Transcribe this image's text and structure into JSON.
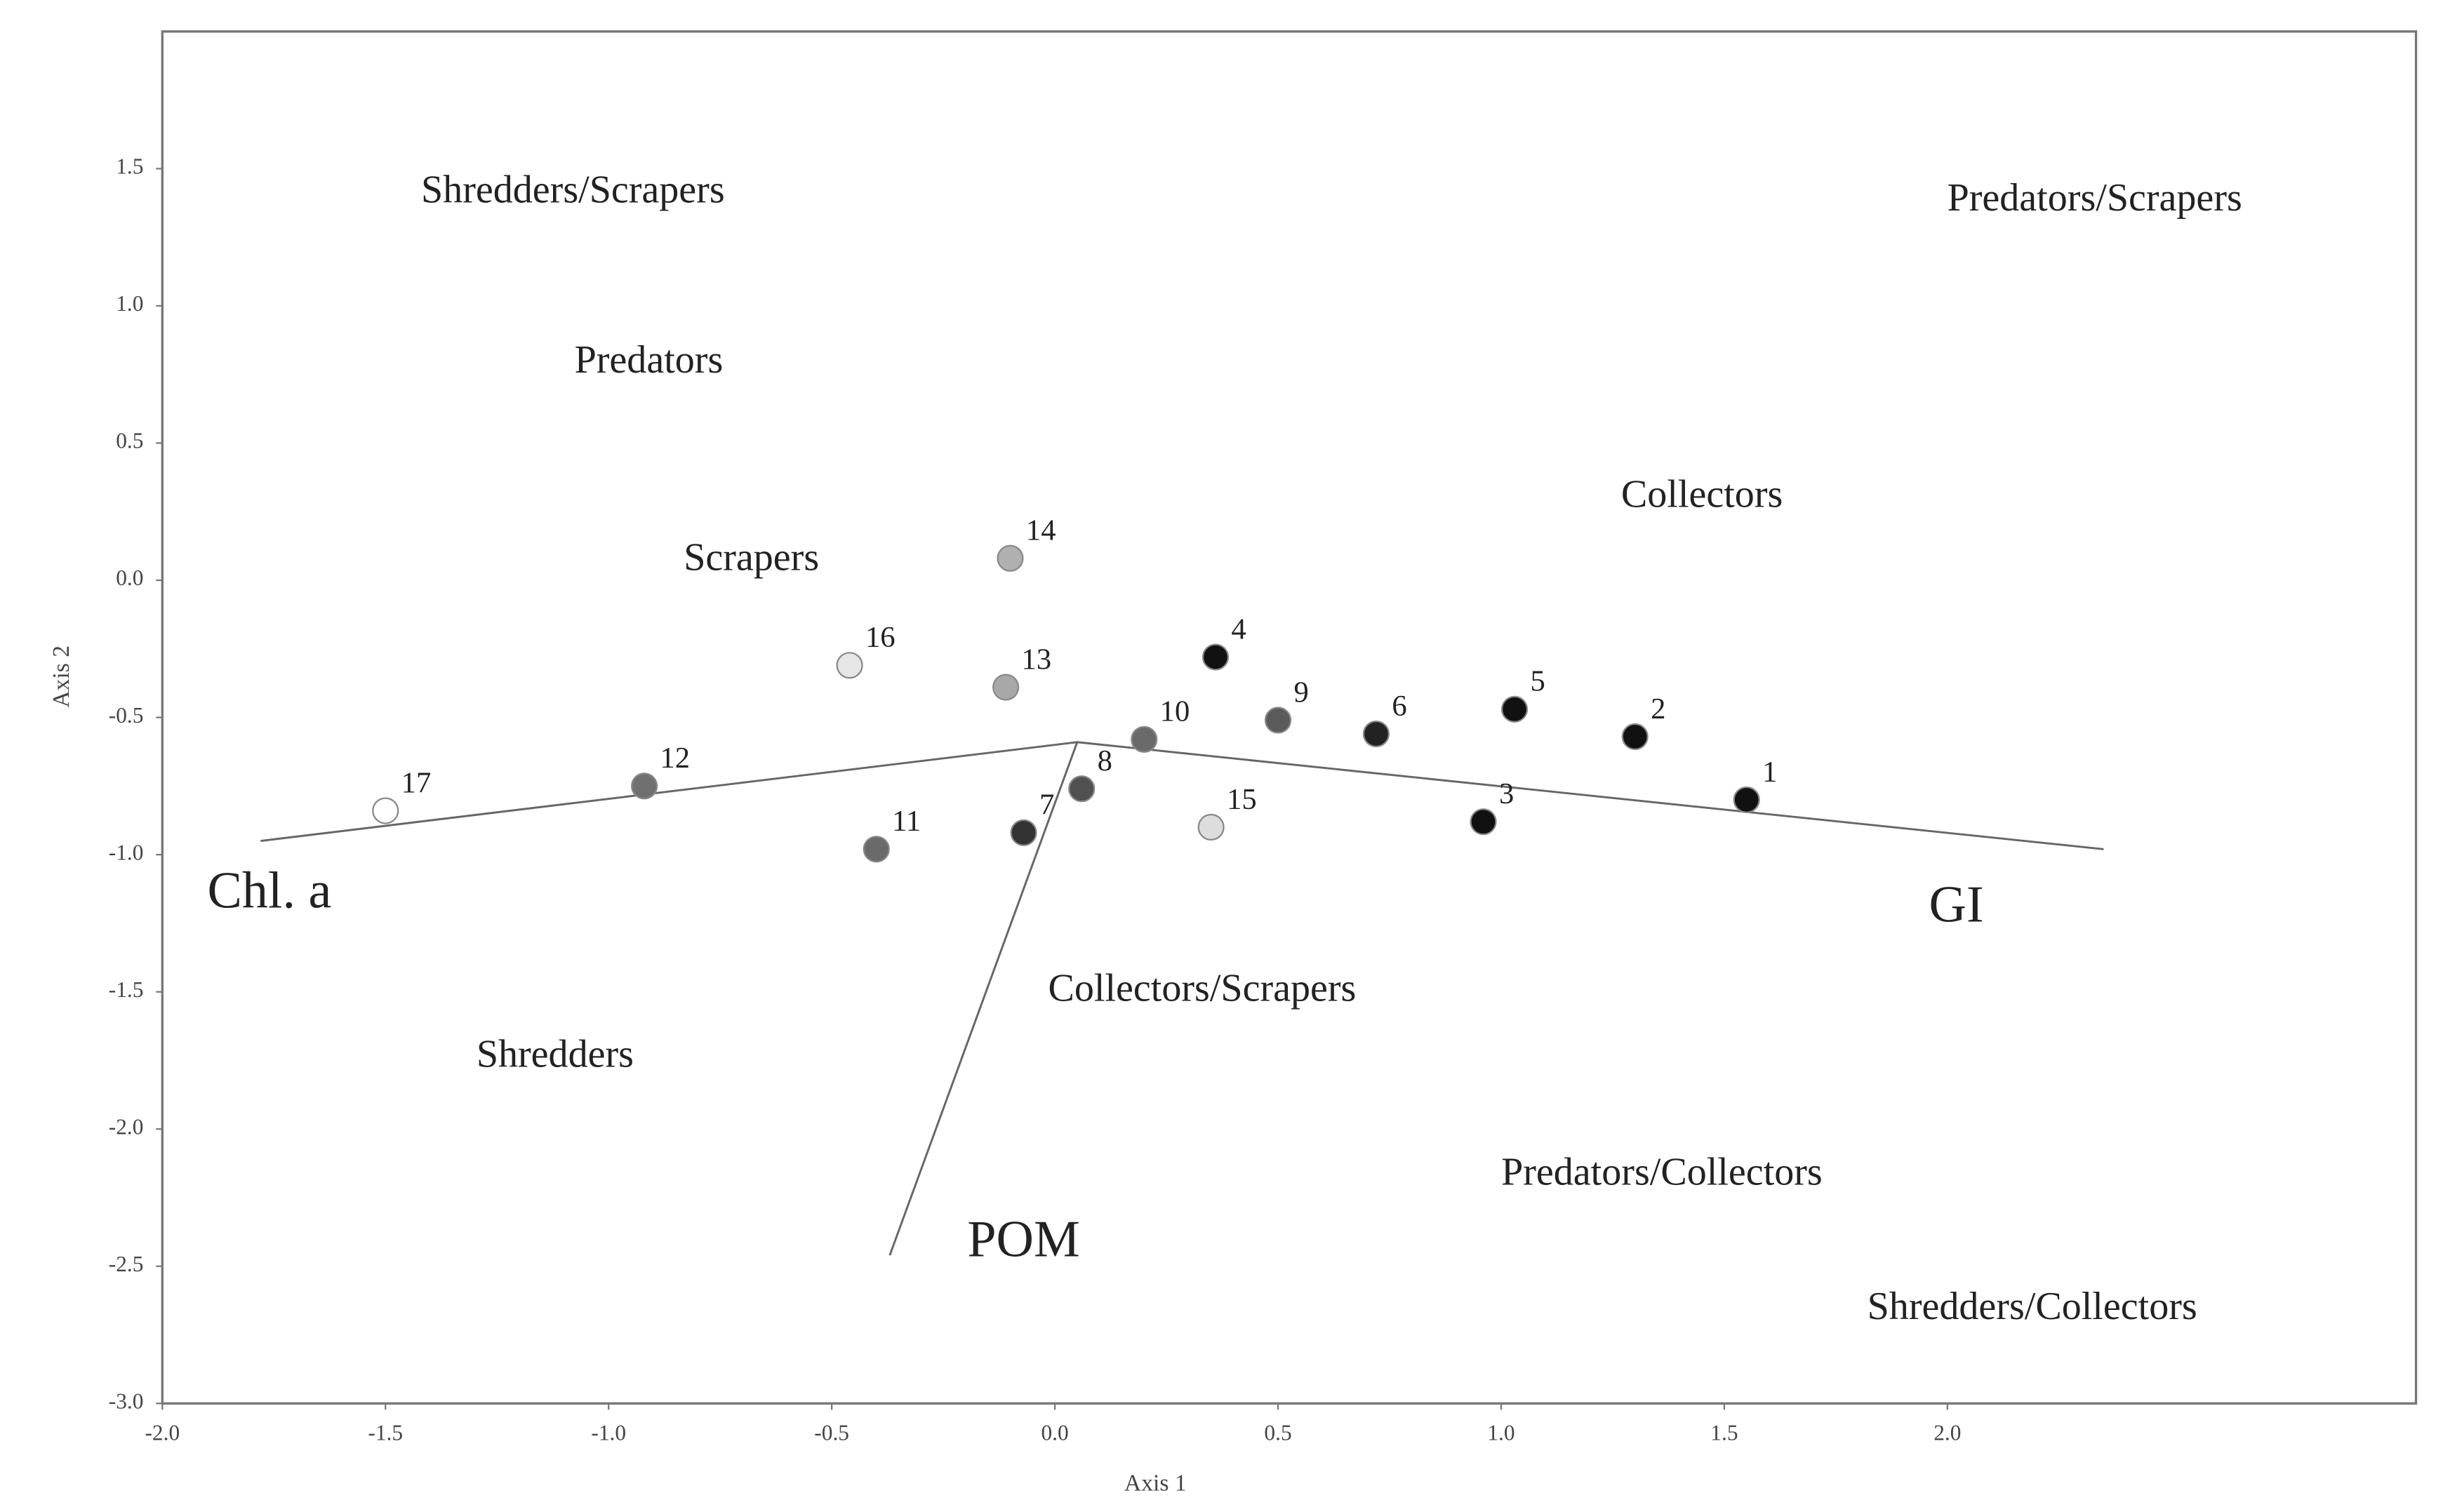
{
  "chart_data": {
    "type": "scatter",
    "x_label": "Axis 1",
    "y_label": "Axis 2",
    "xlim": [
      -2.0,
      3.05
    ],
    "ylim": [
      -3.0,
      2.0
    ],
    "xticks": [
      {
        "value": -2.0,
        "label": "-2.0"
      },
      {
        "value": -1.5,
        "label": "-1.5"
      },
      {
        "value": -1.0,
        "label": "-1.0"
      },
      {
        "value": -0.5,
        "label": "-0.5"
      },
      {
        "value": 0,
        "label": "0.0"
      },
      {
        "value": 0.5,
        "label": "0.5"
      },
      {
        "value": 1.0,
        "label": "1.0"
      },
      {
        "value": 1.5,
        "label": "1.5"
      },
      {
        "value": 2.0,
        "label": "2.0"
      }
    ],
    "yticks": [
      {
        "value": 1.5,
        "label": "1.5"
      },
      {
        "value": 1.0,
        "label": "1.0"
      },
      {
        "value": 0.5,
        "label": "0.5"
      },
      {
        "value": 0,
        "label": "0.0"
      },
      {
        "value": -0.5,
        "label": "-0.5"
      },
      {
        "value": -1.0,
        "label": "-1.0"
      },
      {
        "value": -1.5,
        "label": "-1.5"
      },
      {
        "value": -2.0,
        "label": "-2.0"
      },
      {
        "value": -2.5,
        "label": "-2.5"
      },
      {
        "value": -3.0,
        "label": "-3.0"
      }
    ],
    "points": [
      {
        "label": "1",
        "x": 1.55,
        "y": -0.8,
        "color": "#111111"
      },
      {
        "label": "2",
        "x": 1.3,
        "y": -0.57,
        "color": "#111111"
      },
      {
        "label": "3",
        "x": 0.96,
        "y": -0.88,
        "color": "#111111"
      },
      {
        "label": "4",
        "x": 0.36,
        "y": -0.28,
        "color": "#111111"
      },
      {
        "label": "5",
        "x": 1.03,
        "y": -0.47,
        "color": "#111111"
      },
      {
        "label": "6",
        "x": 0.72,
        "y": -0.56,
        "color": "#222222"
      },
      {
        "label": "7",
        "x": -0.07,
        "y": -0.92,
        "color": "#333333"
      },
      {
        "label": "8",
        "x": 0.06,
        "y": -0.76,
        "color": "#505050"
      },
      {
        "label": "9",
        "x": 0.5,
        "y": -0.51,
        "color": "#5a5a5a"
      },
      {
        "label": "10",
        "x": 0.2,
        "y": -0.58,
        "color": "#6a6a6a"
      },
      {
        "label": "11",
        "x": -0.4,
        "y": -0.98,
        "color": "#6a6a6a"
      },
      {
        "label": "12",
        "x": -0.92,
        "y": -0.75,
        "color": "#707070"
      },
      {
        "label": "13",
        "x": -0.11,
        "y": -0.39,
        "color": "#a8a8a8"
      },
      {
        "label": "14",
        "x": -0.1,
        "y": 0.08,
        "color": "#b0b0b0"
      },
      {
        "label": "15",
        "x": 0.35,
        "y": -0.9,
        "color": "#dddddd"
      },
      {
        "label": "16",
        "x": -0.46,
        "y": -0.31,
        "color": "#e6e6e6"
      },
      {
        "label": "17",
        "x": -1.5,
        "y": -0.84,
        "color": "#ffffff"
      }
    ],
    "vectors": [
      {
        "name": "Chl. a",
        "x0": 0.05,
        "y0": -0.59,
        "x1": -1.78,
        "y1": -0.95,
        "label_x": -1.76,
        "label_y": -1.15
      },
      {
        "name": "GI",
        "x0": 0.05,
        "y0": -0.59,
        "x1": 2.35,
        "y1": -0.98,
        "label_x": 2.02,
        "label_y": -1.2
      },
      {
        "name": "POM",
        "x0": 0.05,
        "y0": -0.59,
        "x1": -0.37,
        "y1": -2.46,
        "label_x": -0.07,
        "label_y": -2.42
      }
    ],
    "annotations": [
      {
        "text": "Shredders/Scrapers",
        "x": -1.08,
        "y": 1.41
      },
      {
        "text": "Predators/Scrapers",
        "x": 2.33,
        "y": 1.38
      },
      {
        "text": "Predators",
        "x": -0.91,
        "y": 0.79
      },
      {
        "text": "Collectors",
        "x": 1.45,
        "y": 0.3
      },
      {
        "text": "Scrapers",
        "x": -0.68,
        "y": 0.07
      },
      {
        "text": "Collectors/Scrapers",
        "x": 0.33,
        "y": -1.5
      },
      {
        "text": "Shredders",
        "x": -1.12,
        "y": -1.74
      },
      {
        "text": "Predators/Collectors",
        "x": 1.36,
        "y": -2.17
      },
      {
        "text": "Shredders/Collectors",
        "x": 2.19,
        "y": -2.66
      }
    ]
  }
}
